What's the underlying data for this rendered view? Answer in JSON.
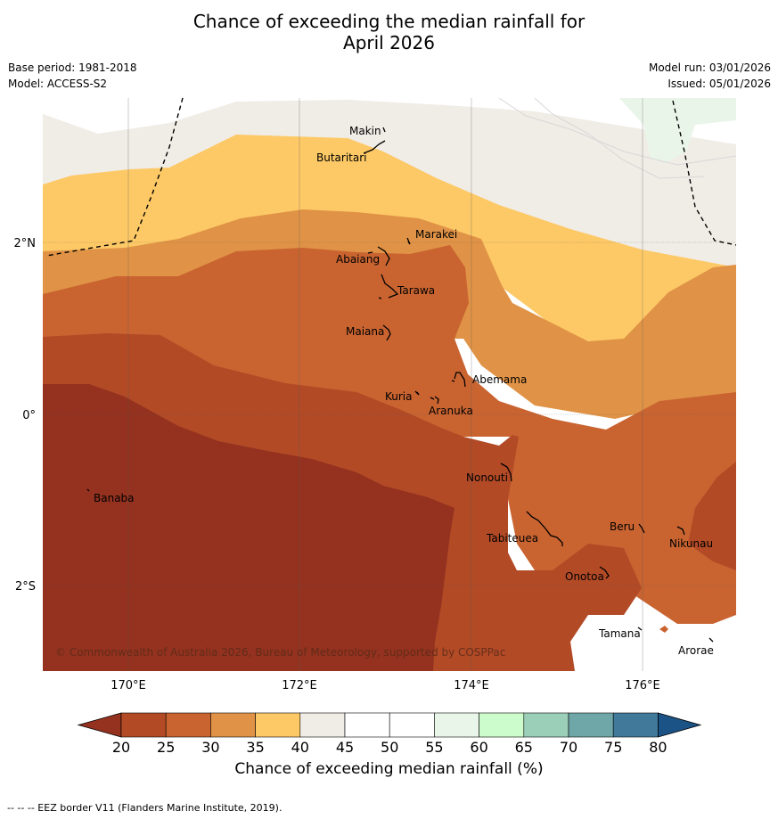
{
  "title": {
    "line1": "Chance of exceeding the median rainfall for",
    "line2": "April 2026"
  },
  "meta": {
    "base_period": "Base period: 1981-2018",
    "model": "Model: ACCESS-S2",
    "model_run": "Model run: 03/01/2026",
    "issued": "Issued: 05/01/2026"
  },
  "axes": {
    "lon_labels": [
      "170°E",
      "172°E",
      "174°E",
      "176°E"
    ],
    "lat_labels": [
      "2°N",
      "0°",
      "2°S"
    ]
  },
  "places": [
    {
      "name": "Makin"
    },
    {
      "name": "Butaritari"
    },
    {
      "name": "Marakei"
    },
    {
      "name": "Abaiang"
    },
    {
      "name": "Tarawa"
    },
    {
      "name": "Maiana"
    },
    {
      "name": "Abemama"
    },
    {
      "name": "Kuria"
    },
    {
      "name": "Aranuka"
    },
    {
      "name": "Banaba"
    },
    {
      "name": "Nonouti"
    },
    {
      "name": "Tabiteuea"
    },
    {
      "name": "Beru"
    },
    {
      "name": "Nikunau"
    },
    {
      "name": "Onotoa"
    },
    {
      "name": "Tamana"
    },
    {
      "name": "Arorae"
    }
  ],
  "copyright": "© Commonwealth of Australia 2026, Bureau of Meteorology, supported by COSPPac",
  "colorbar": {
    "ticks": [
      "20",
      "25",
      "30",
      "35",
      "40",
      "45",
      "50",
      "55",
      "60",
      "65",
      "70",
      "75",
      "80"
    ],
    "colors": [
      "#b24a26",
      "#c96431",
      "#e09346",
      "#fdc966",
      "#f0ece6",
      "#ffffff",
      "#ffffff",
      "#eaf5ea",
      "#ccfccc",
      "#9ccfb8",
      "#6fa7a8",
      "#41799a"
    ],
    "under_color": "#94321f",
    "over_color": "#1c5386",
    "label": "Chance of exceeding median rainfall (%)"
  },
  "footnote": "--  --  -- EEZ border V11 (Flanders Marine Institute, 2019)."
}
